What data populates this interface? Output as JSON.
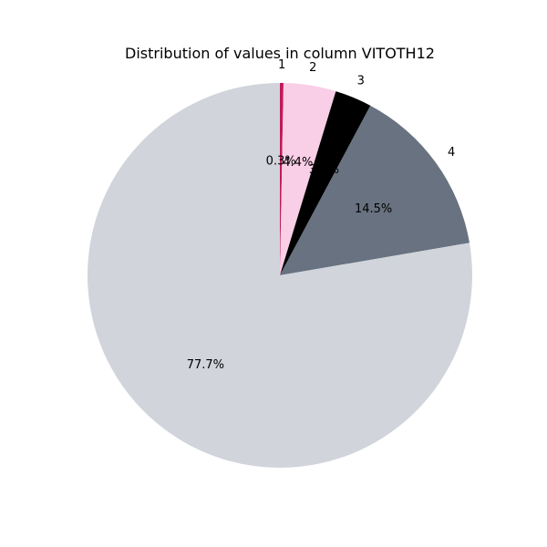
{
  "chart_data": {
    "type": "pie",
    "title": "Distribution of values in column VITOTH12",
    "slices": [
      {
        "label": "1",
        "percent": 0.3,
        "percent_label": "0.3%",
        "color": "#c2185b"
      },
      {
        "label": "2",
        "percent": 4.4,
        "percent_label": "4.4%",
        "color": "#f9cee7"
      },
      {
        "label": "3",
        "percent": 3.1,
        "percent_label": "3.1%",
        "color": "#000000"
      },
      {
        "label": "4",
        "percent": 14.5,
        "percent_label": "14.5%",
        "color": "#687280"
      },
      {
        "label": "",
        "percent": 77.7,
        "percent_label": "77.7%",
        "color": "#d1d4db"
      }
    ],
    "start_angle_deg": 90,
    "direction": "clockwise"
  }
}
